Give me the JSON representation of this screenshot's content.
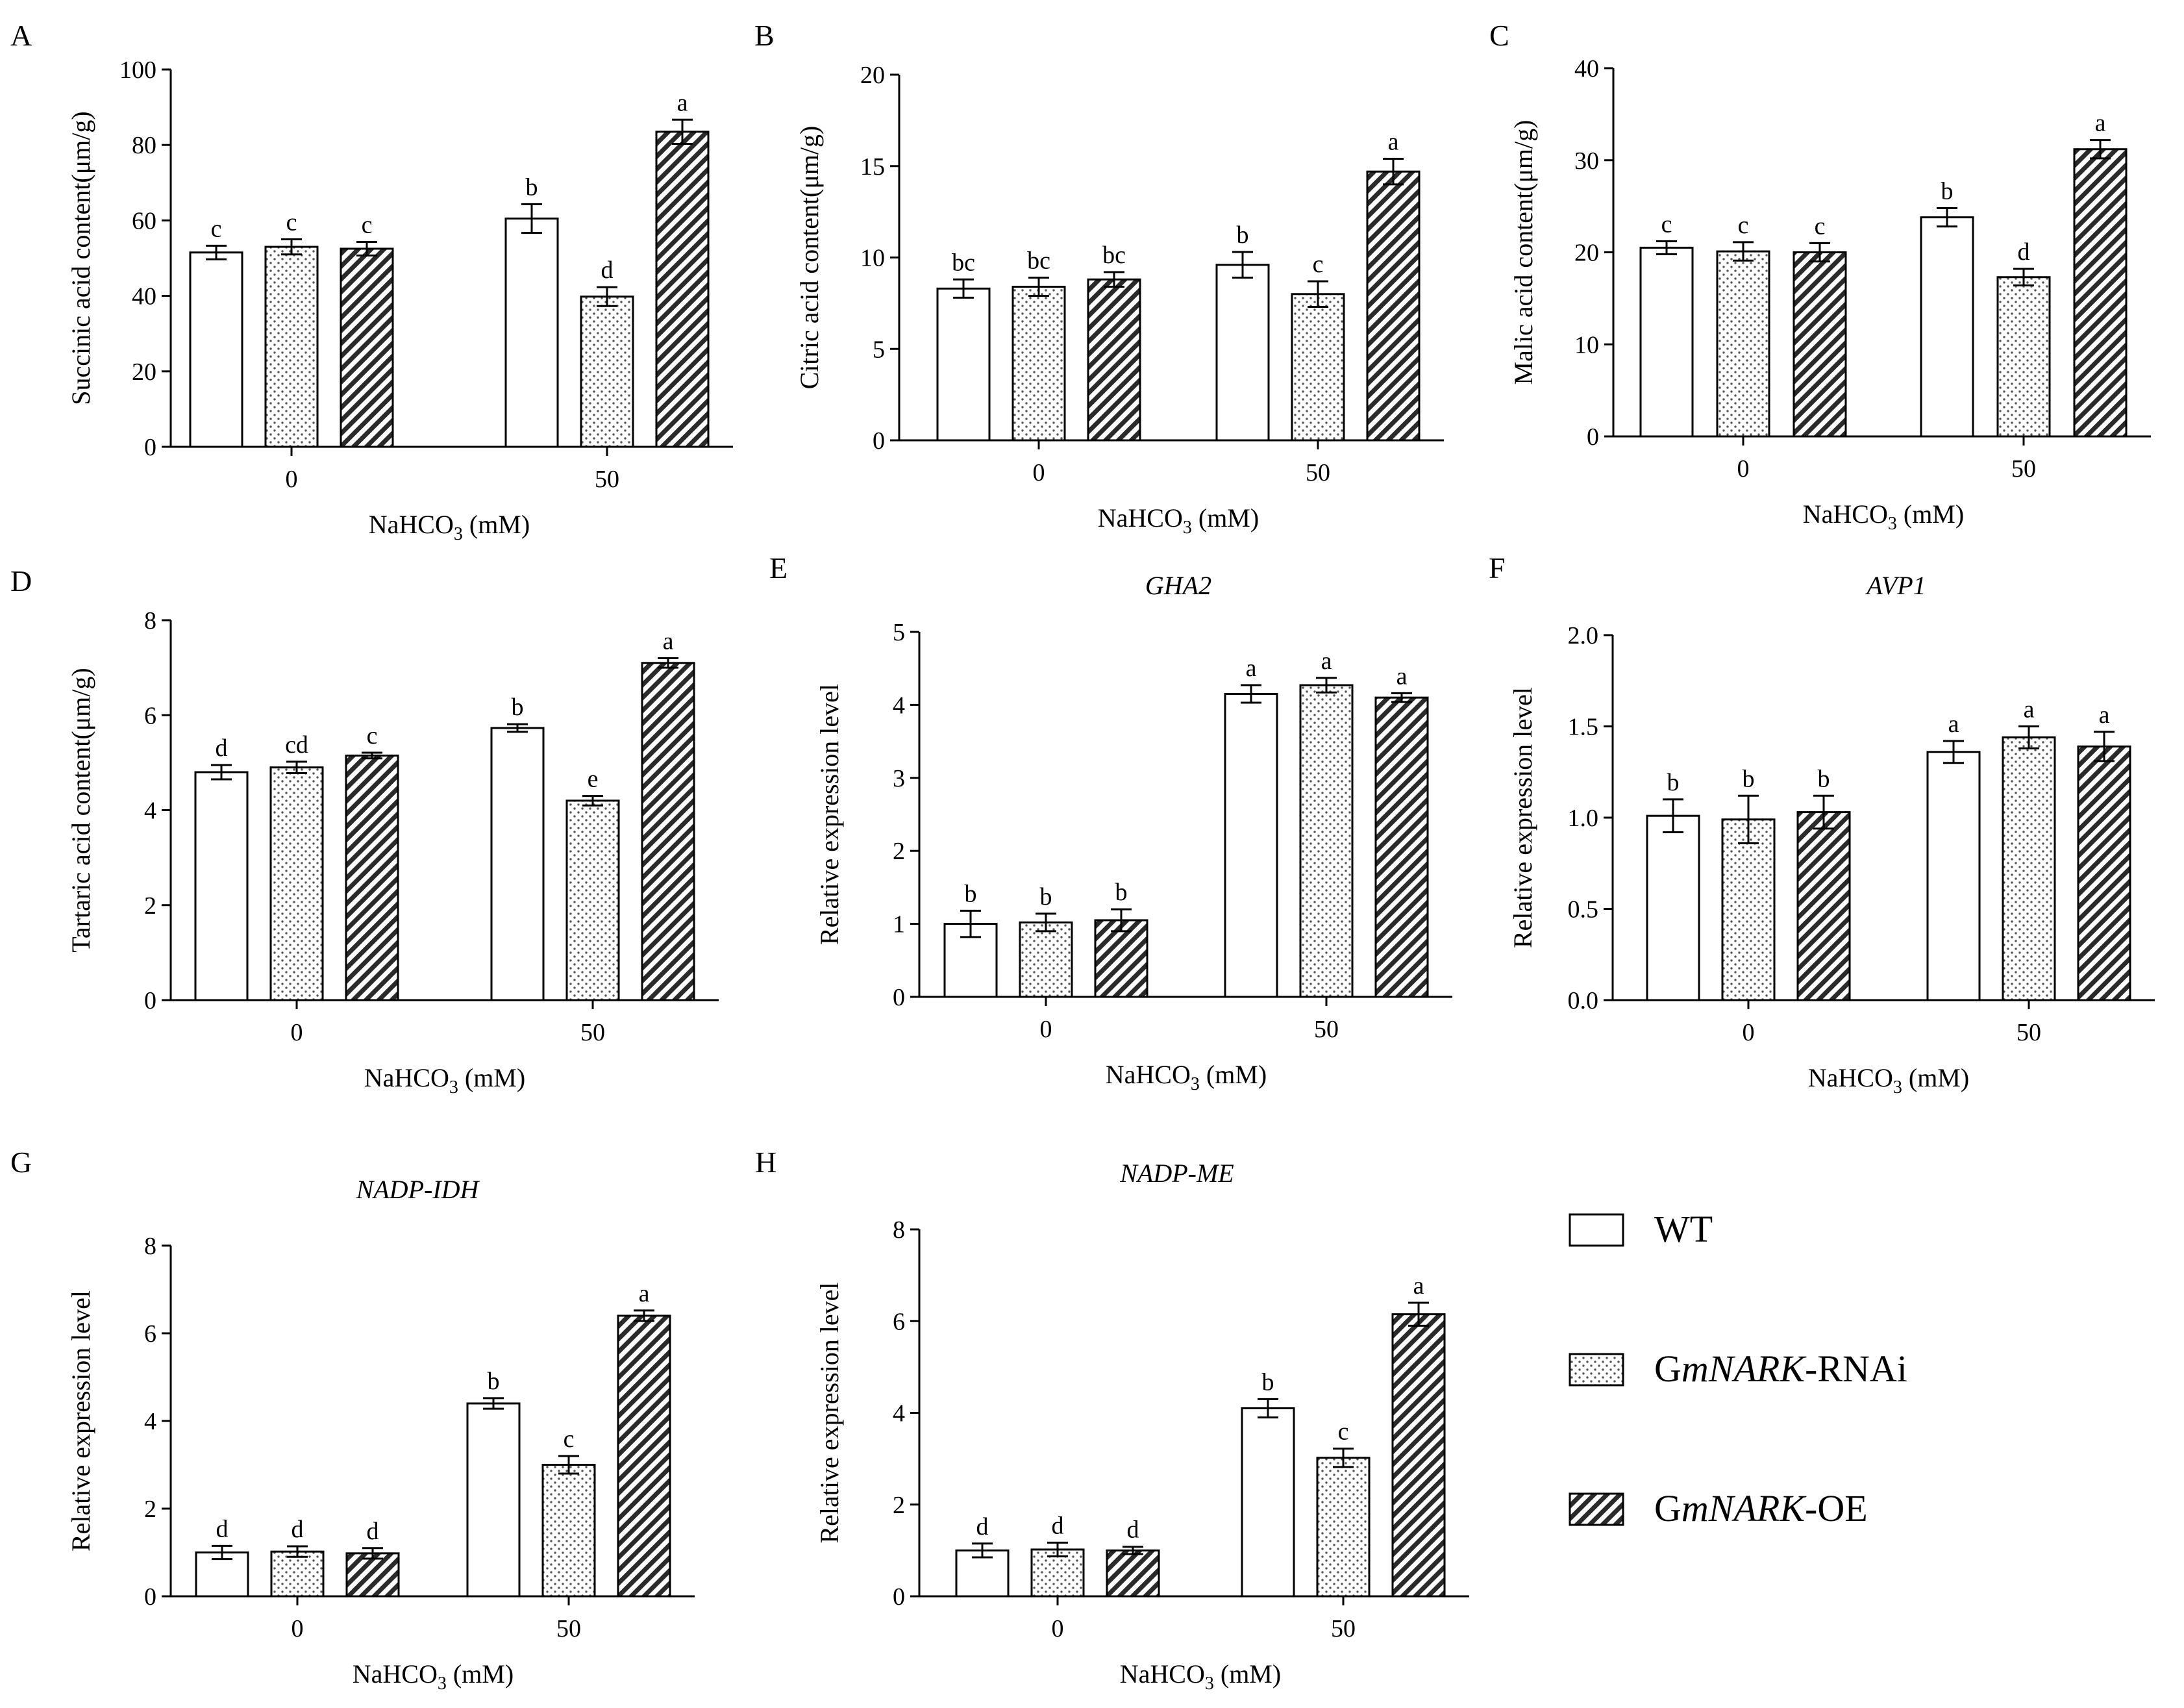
{
  "groups": [
    "WT",
    "GmNARK-RNAi",
    "GmNARK-OE"
  ],
  "legend": [
    {
      "key": "wt",
      "prefix": "WT",
      "italic": "",
      "suffix": "",
      "pattern": "blank"
    },
    {
      "key": "rnai",
      "prefix": "G",
      "italic": "mNARK",
      "suffix": "-RNAi",
      "pattern": "dots"
    },
    {
      "key": "oe",
      "prefix": "G",
      "italic": "mNARK",
      "suffix": "-OE",
      "pattern": "hatch"
    }
  ],
  "xlabel_main": "NaHCO",
  "xlabel_sub": "3",
  "xlabel_tail": " (mM)",
  "chart_data": [
    {
      "type": "bar",
      "panel": "A",
      "title": "",
      "ylabel": "Succinic acid content(μm/g)",
      "ylim": [
        0,
        100
      ],
      "yticks": [
        0,
        20,
        40,
        60,
        80,
        100
      ],
      "yticklabels": [
        "0",
        "20",
        "40",
        "60",
        "80",
        "100"
      ],
      "categories": [
        "0",
        "50"
      ],
      "series": [
        {
          "name": "WT",
          "values": [
            51.5,
            60.5
          ],
          "errors": [
            1.8,
            3.8
          ],
          "letters": [
            "c",
            "b"
          ]
        },
        {
          "name": "GmNARK-RNAi",
          "values": [
            53.0,
            39.8
          ],
          "errors": [
            2.0,
            2.5
          ],
          "letters": [
            "c",
            "d"
          ]
        },
        {
          "name": "GmNARK-OE",
          "values": [
            52.5,
            83.5
          ],
          "errors": [
            1.8,
            3.2
          ],
          "letters": [
            "c",
            "a"
          ]
        }
      ]
    },
    {
      "type": "bar",
      "panel": "B",
      "title": "",
      "ylabel": "Citric acid content(μm/g)",
      "ylim": [
        0,
        20
      ],
      "yticks": [
        0,
        5,
        10,
        15,
        20
      ],
      "yticklabels": [
        "0",
        "5",
        "10",
        "15",
        "20"
      ],
      "categories": [
        "0",
        "50"
      ],
      "series": [
        {
          "name": "WT",
          "values": [
            8.3,
            9.6
          ],
          "errors": [
            0.5,
            0.7
          ],
          "letters": [
            "bc",
            "b"
          ]
        },
        {
          "name": "GmNARK-RNAi",
          "values": [
            8.4,
            8.0
          ],
          "errors": [
            0.5,
            0.7
          ],
          "letters": [
            "bc",
            "c"
          ]
        },
        {
          "name": "GmNARK-OE",
          "values": [
            8.8,
            14.7
          ],
          "errors": [
            0.4,
            0.7
          ],
          "letters": [
            "bc",
            "a"
          ]
        }
      ]
    },
    {
      "type": "bar",
      "panel": "C",
      "title": "",
      "ylabel": "Malic acid content(μm/g)",
      "ylim": [
        0,
        40
      ],
      "yticks": [
        0,
        10,
        20,
        30,
        40
      ],
      "yticklabels": [
        "0",
        "10",
        "20",
        "30",
        "40"
      ],
      "categories": [
        "0",
        "50"
      ],
      "series": [
        {
          "name": "WT",
          "values": [
            20.5,
            23.8
          ],
          "errors": [
            0.7,
            1.0
          ],
          "letters": [
            "c",
            "b"
          ]
        },
        {
          "name": "GmNARK-RNAi",
          "values": [
            20.1,
            17.3
          ],
          "errors": [
            1.0,
            0.9
          ],
          "letters": [
            "c",
            "d"
          ]
        },
        {
          "name": "GmNARK-OE",
          "values": [
            20.0,
            31.2
          ],
          "errors": [
            1.0,
            1.0
          ],
          "letters": [
            "c",
            "a"
          ]
        }
      ]
    },
    {
      "type": "bar",
      "panel": "D",
      "title": "",
      "ylabel": "Tartaric acid content(μm/g)",
      "ylim": [
        0,
        8
      ],
      "yticks": [
        0,
        2,
        4,
        6,
        8
      ],
      "yticklabels": [
        "0",
        "2",
        "4",
        "6",
        "8"
      ],
      "categories": [
        "0",
        "50"
      ],
      "series": [
        {
          "name": "WT",
          "values": [
            4.8,
            5.73
          ],
          "errors": [
            0.15,
            0.08
          ],
          "letters": [
            "d",
            "b"
          ]
        },
        {
          "name": "GmNARK-RNAi",
          "values": [
            4.9,
            4.2
          ],
          "errors": [
            0.12,
            0.1
          ],
          "letters": [
            "cd",
            "e"
          ]
        },
        {
          "name": "GmNARK-OE",
          "values": [
            5.15,
            7.1
          ],
          "errors": [
            0.06,
            0.1
          ],
          "letters": [
            "c",
            "a"
          ]
        }
      ]
    },
    {
      "type": "bar",
      "panel": "E",
      "title": "GHA2",
      "ylabel": "Relative expression level",
      "ylim": [
        0,
        5
      ],
      "yticks": [
        0,
        1,
        2,
        3,
        4,
        5
      ],
      "yticklabels": [
        "0",
        "1",
        "2",
        "3",
        "4",
        "5"
      ],
      "categories": [
        "0",
        "50"
      ],
      "series": [
        {
          "name": "WT",
          "values": [
            1.0,
            4.15
          ],
          "errors": [
            0.18,
            0.12
          ],
          "letters": [
            "b",
            "a"
          ]
        },
        {
          "name": "GmNARK-RNAi",
          "values": [
            1.02,
            4.27
          ],
          "errors": [
            0.12,
            0.1
          ],
          "letters": [
            "b",
            "a"
          ]
        },
        {
          "name": "GmNARK-OE",
          "values": [
            1.05,
            4.1
          ],
          "errors": [
            0.15,
            0.06
          ],
          "letters": [
            "b",
            "a"
          ]
        }
      ]
    },
    {
      "type": "bar",
      "panel": "F",
      "title": "AVP1",
      "ylabel": "Relative expression level",
      "ylim": [
        0,
        2
      ],
      "yticks": [
        0,
        0.5,
        1,
        1.5,
        2
      ],
      "yticklabels": [
        "0.0",
        "0.5",
        "1.0",
        "1.5",
        "2.0"
      ],
      "categories": [
        "0",
        "50"
      ],
      "series": [
        {
          "name": "WT",
          "values": [
            1.01,
            1.36
          ],
          "errors": [
            0.09,
            0.06
          ],
          "letters": [
            "b",
            "a"
          ]
        },
        {
          "name": "GmNARK-RNAi",
          "values": [
            0.99,
            1.44
          ],
          "errors": [
            0.13,
            0.06
          ],
          "letters": [
            "b",
            "a"
          ]
        },
        {
          "name": "GmNARK-OE",
          "values": [
            1.03,
            1.39
          ],
          "errors": [
            0.09,
            0.08
          ],
          "letters": [
            "b",
            "a"
          ]
        }
      ]
    },
    {
      "type": "bar",
      "panel": "G",
      "title": "NADP-IDH",
      "ylabel": "Relative expression level",
      "ylim": [
        0,
        8
      ],
      "yticks": [
        0,
        2,
        4,
        6,
        8
      ],
      "yticklabels": [
        "0",
        "2",
        "4",
        "6",
        "8"
      ],
      "categories": [
        "0",
        "50"
      ],
      "series": [
        {
          "name": "WT",
          "values": [
            1.0,
            4.4
          ],
          "errors": [
            0.15,
            0.12
          ],
          "letters": [
            "d",
            "b"
          ]
        },
        {
          "name": "GmNARK-RNAi",
          "values": [
            1.02,
            3.0
          ],
          "errors": [
            0.12,
            0.2
          ],
          "letters": [
            "d",
            "c"
          ]
        },
        {
          "name": "GmNARK-OE",
          "values": [
            0.98,
            6.4
          ],
          "errors": [
            0.12,
            0.12
          ],
          "letters": [
            "d",
            "a"
          ]
        }
      ]
    },
    {
      "type": "bar",
      "panel": "H",
      "title": "NADP-ME",
      "ylabel": "Relative expression level",
      "ylim": [
        0,
        8
      ],
      "yticks": [
        0,
        2,
        4,
        6,
        8
      ],
      "yticklabels": [
        "0",
        "2",
        "4",
        "6",
        "8"
      ],
      "categories": [
        "0",
        "50"
      ],
      "series": [
        {
          "name": "WT",
          "values": [
            1.0,
            4.1
          ],
          "errors": [
            0.15,
            0.2
          ],
          "letters": [
            "d",
            "b"
          ]
        },
        {
          "name": "GmNARK-RNAi",
          "values": [
            1.02,
            3.02
          ],
          "errors": [
            0.15,
            0.2
          ],
          "letters": [
            "d",
            "c"
          ]
        },
        {
          "name": "GmNARK-OE",
          "values": [
            1.0,
            6.15
          ],
          "errors": [
            0.08,
            0.25
          ],
          "letters": [
            "d",
            "a"
          ]
        }
      ]
    }
  ]
}
